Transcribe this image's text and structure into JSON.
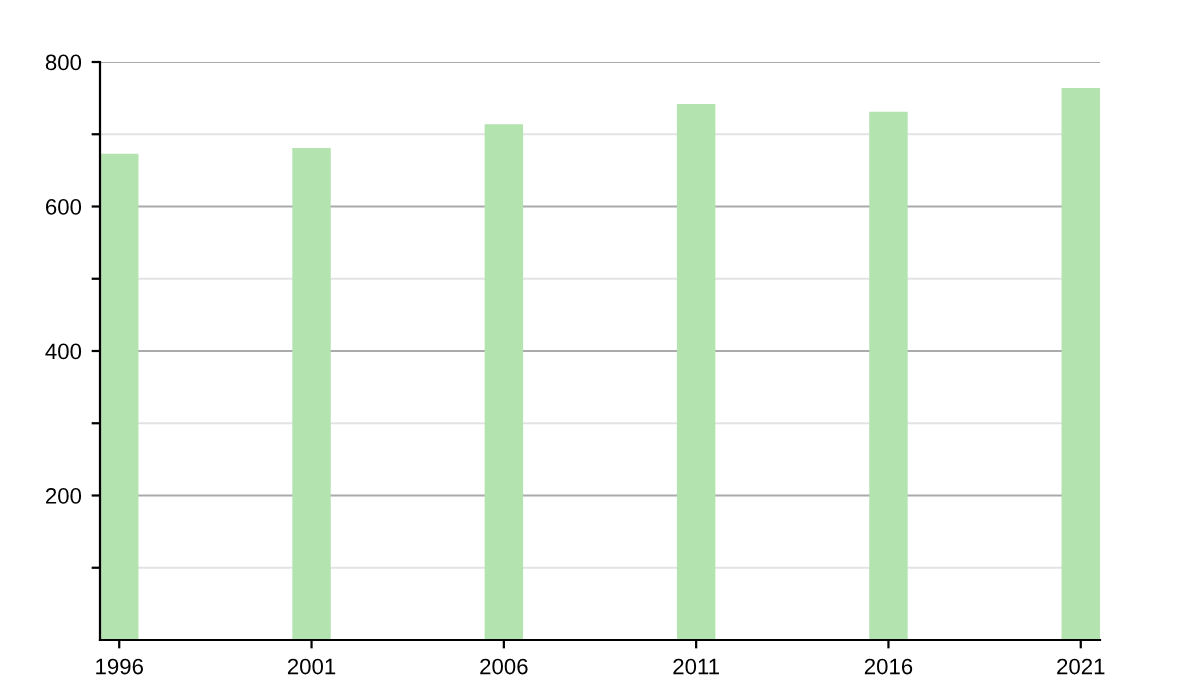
{
  "chart_data": {
    "type": "bar",
    "x": [
      1996,
      2001,
      2006,
      2011,
      2016,
      2021
    ],
    "values": [
      673,
      681,
      714,
      742,
      731,
      764
    ],
    "color": "#b3e4b0",
    "xlim": [
      1995.5,
      2021.5
    ],
    "xticks": [
      1996,
      2001,
      2006,
      2011,
      2016,
      2021
    ],
    "ylim": [
      0,
      800
    ],
    "yticks": [
      {
        "value": 100,
        "label": null
      },
      200,
      {
        "value": 300,
        "label": null
      },
      400,
      {
        "value": 500,
        "label": null
      },
      600,
      {
        "value": 700,
        "label": null
      },
      800
    ],
    "grid": "y"
  }
}
